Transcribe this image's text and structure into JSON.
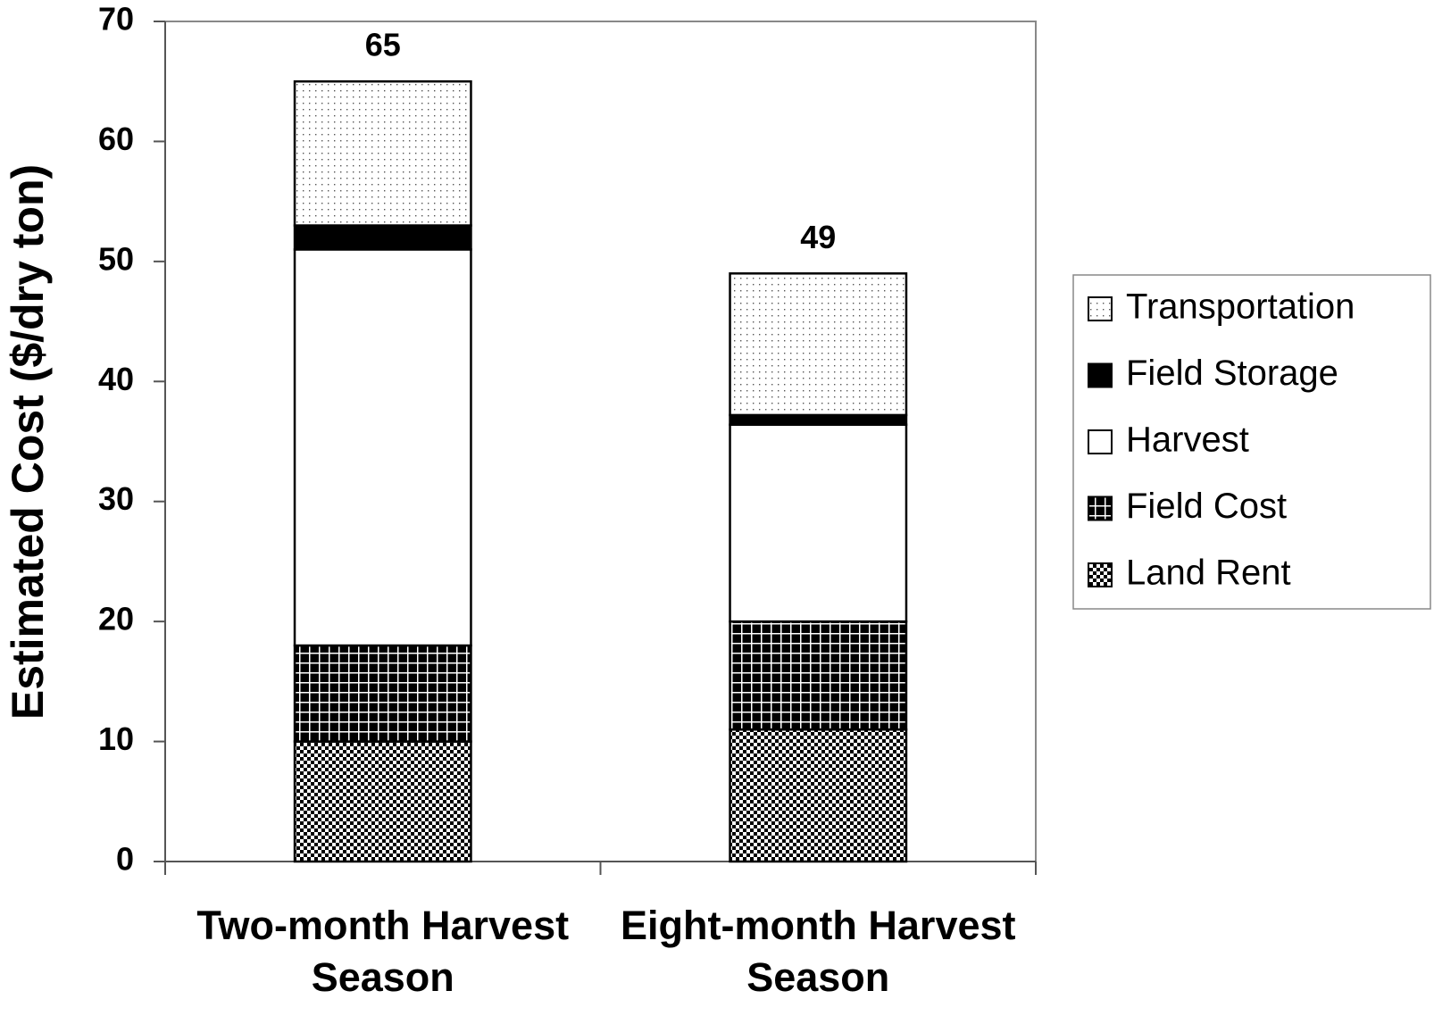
{
  "chart_data": {
    "type": "stacked_bar",
    "ylabel": "Estimated Cost ($/dry ton)",
    "categories": [
      "Two-month Harvest Season",
      "Eight-month Harvest Season"
    ],
    "series": [
      {
        "name": "Land Rent",
        "color": "#000000",
        "pattern": "checker",
        "values": [
          10,
          11
        ]
      },
      {
        "name": "Field Cost",
        "color": "#000000",
        "pattern": "grid",
        "values": [
          8,
          9
        ]
      },
      {
        "name": "Harvest",
        "color": "#ffffff",
        "pattern": "none",
        "values": [
          33,
          16.4
        ]
      },
      {
        "name": "Field Storage",
        "color": "#000000",
        "pattern": "solid",
        "values": [
          2,
          0.8
        ]
      },
      {
        "name": "Transportation",
        "color": "#000000",
        "pattern": "dots",
        "values": [
          12,
          11.8
        ]
      }
    ],
    "totals": [
      65,
      49
    ],
    "ylim": [
      0,
      70
    ],
    "yticks": [
      0,
      10,
      20,
      30,
      40,
      50,
      60,
      70
    ],
    "legend": "right"
  }
}
